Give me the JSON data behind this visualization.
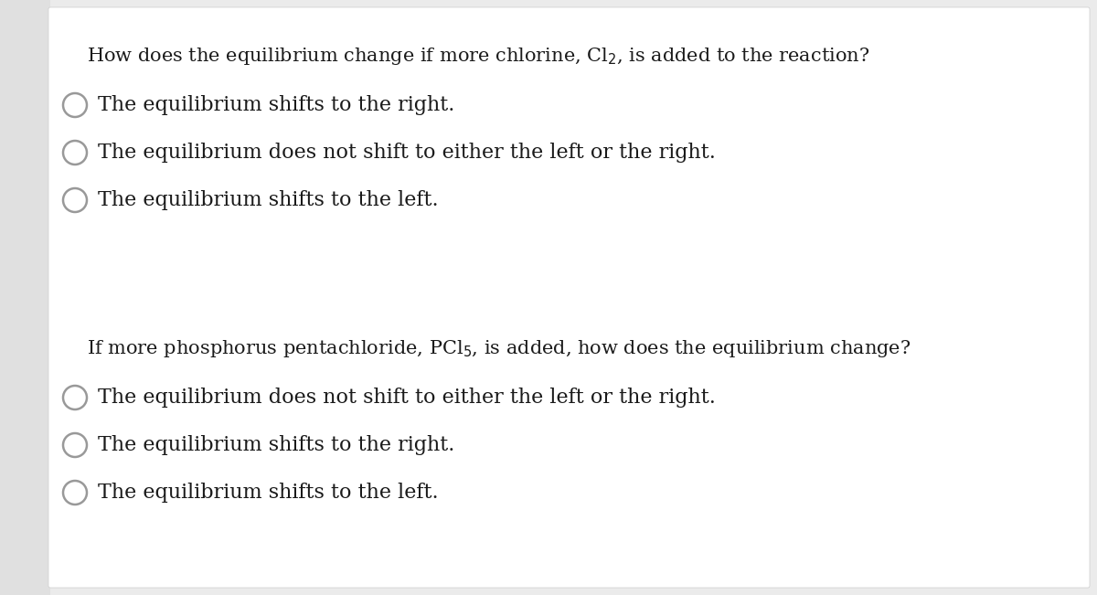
{
  "bg_color": "#ebebeb",
  "card_color": "#ffffff",
  "text_color": "#1a1a1a",
  "question1": "How does the equilibrium change if more chlorine, Cl$_2$, is added to the reaction?",
  "options1": [
    "The equilibrium shifts to the right.",
    "The equilibrium does not shift to either the left or the right.",
    "The equilibrium shifts to the left."
  ],
  "question2": "If more phosphorus pentachloride, PCl$_5$, is added, how does the equilibrium change?",
  "options2": [
    "The equilibrium does not shift to either the left or the right.",
    "The equilibrium shifts to the right.",
    "The equilibrium shifts to the left."
  ],
  "font_size_question": 15,
  "font_size_option": 16,
  "left_border_color": "#c0c0c0",
  "circle_color": "#999999",
  "font_family": "DejaVu Serif"
}
